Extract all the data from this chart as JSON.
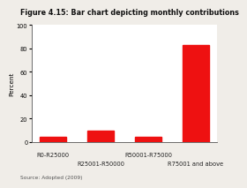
{
  "title": "Figure 4.15: Bar chart depicting monthly contributions",
  "categories": [
    "R0-R25000",
    "R25001-R50000",
    "R50001-R75000",
    "R75001 and above"
  ],
  "values": [
    4,
    10,
    4,
    83
  ],
  "bar_color": "#ee1111",
  "ylabel": "Percent",
  "ylim": [
    0,
    100
  ],
  "yticks": [
    0,
    20,
    40,
    60,
    80,
    100
  ],
  "source_text": "Source: Adopted (2009)",
  "background_color": "#f0ede8",
  "title_fontsize": 5.8,
  "axis_label_fontsize": 5.2,
  "tick_fontsize": 4.8,
  "source_fontsize": 4.2,
  "bar_width": 0.55
}
